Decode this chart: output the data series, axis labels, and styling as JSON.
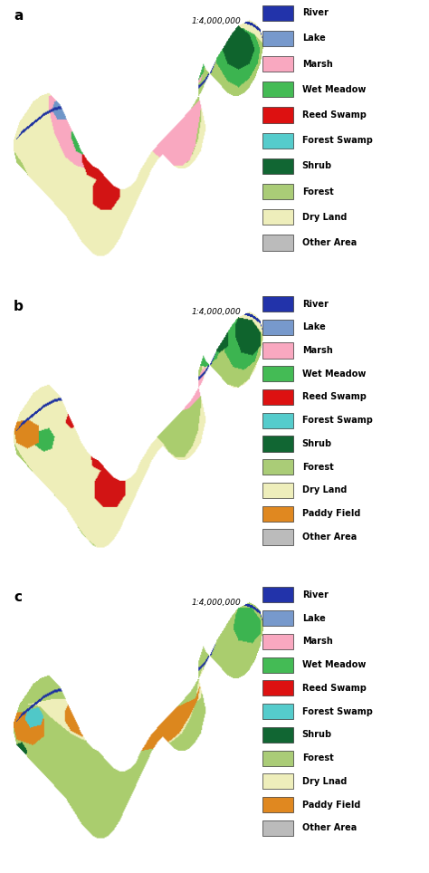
{
  "panels": [
    "a",
    "b",
    "c"
  ],
  "legends": {
    "a": [
      {
        "label": "River",
        "color": "#2233aa"
      },
      {
        "label": "Lake",
        "color": "#7799cc"
      },
      {
        "label": "Marsh",
        "color": "#f9a8c0"
      },
      {
        "label": "Wet Meadow",
        "color": "#44bb55"
      },
      {
        "label": "Reed Swamp",
        "color": "#dd1111"
      },
      {
        "label": "Forest Swamp",
        "color": "#55cccc"
      },
      {
        "label": "Shrub",
        "color": "#116633"
      },
      {
        "label": "Forest",
        "color": "#aacc77"
      },
      {
        "label": "Dry Land",
        "color": "#eeeebb"
      },
      {
        "label": "Other Area",
        "color": "#bbbbbb"
      }
    ],
    "b": [
      {
        "label": "River",
        "color": "#2233aa"
      },
      {
        "label": "Lake",
        "color": "#7799cc"
      },
      {
        "label": "Marsh",
        "color": "#f9a8c0"
      },
      {
        "label": "Wet Meadow",
        "color": "#44bb55"
      },
      {
        "label": "Reed Swamp",
        "color": "#dd1111"
      },
      {
        "label": "Forest Swamp",
        "color": "#55cccc"
      },
      {
        "label": "Shrub",
        "color": "#116633"
      },
      {
        "label": "Forest",
        "color": "#aacc77"
      },
      {
        "label": "Dry Land",
        "color": "#eeeebb"
      },
      {
        "label": "Paddy Field",
        "color": "#e08820"
      },
      {
        "label": "Other Area",
        "color": "#bbbbbb"
      }
    ],
    "c": [
      {
        "label": "River",
        "color": "#2233aa"
      },
      {
        "label": "Lake",
        "color": "#7799cc"
      },
      {
        "label": "Marsh",
        "color": "#f9a8c0"
      },
      {
        "label": "Wet Meadow",
        "color": "#44bb55"
      },
      {
        "label": "Reed Swamp",
        "color": "#dd1111"
      },
      {
        "label": "Forest Swamp",
        "color": "#55cccc"
      },
      {
        "label": "Shrub",
        "color": "#116633"
      },
      {
        "label": "Forest",
        "color": "#aacc77"
      },
      {
        "label": "Dry Lnad",
        "color": "#eeeebb"
      },
      {
        "label": "Paddy Field",
        "color": "#e08820"
      },
      {
        "label": "Other Area",
        "color": "#bbbbbb"
      }
    ]
  },
  "scale_text": "1:4,000,000",
  "background_color": "#ffffff",
  "legend_fontsize": 7.0,
  "panel_label_fontsize": 11
}
